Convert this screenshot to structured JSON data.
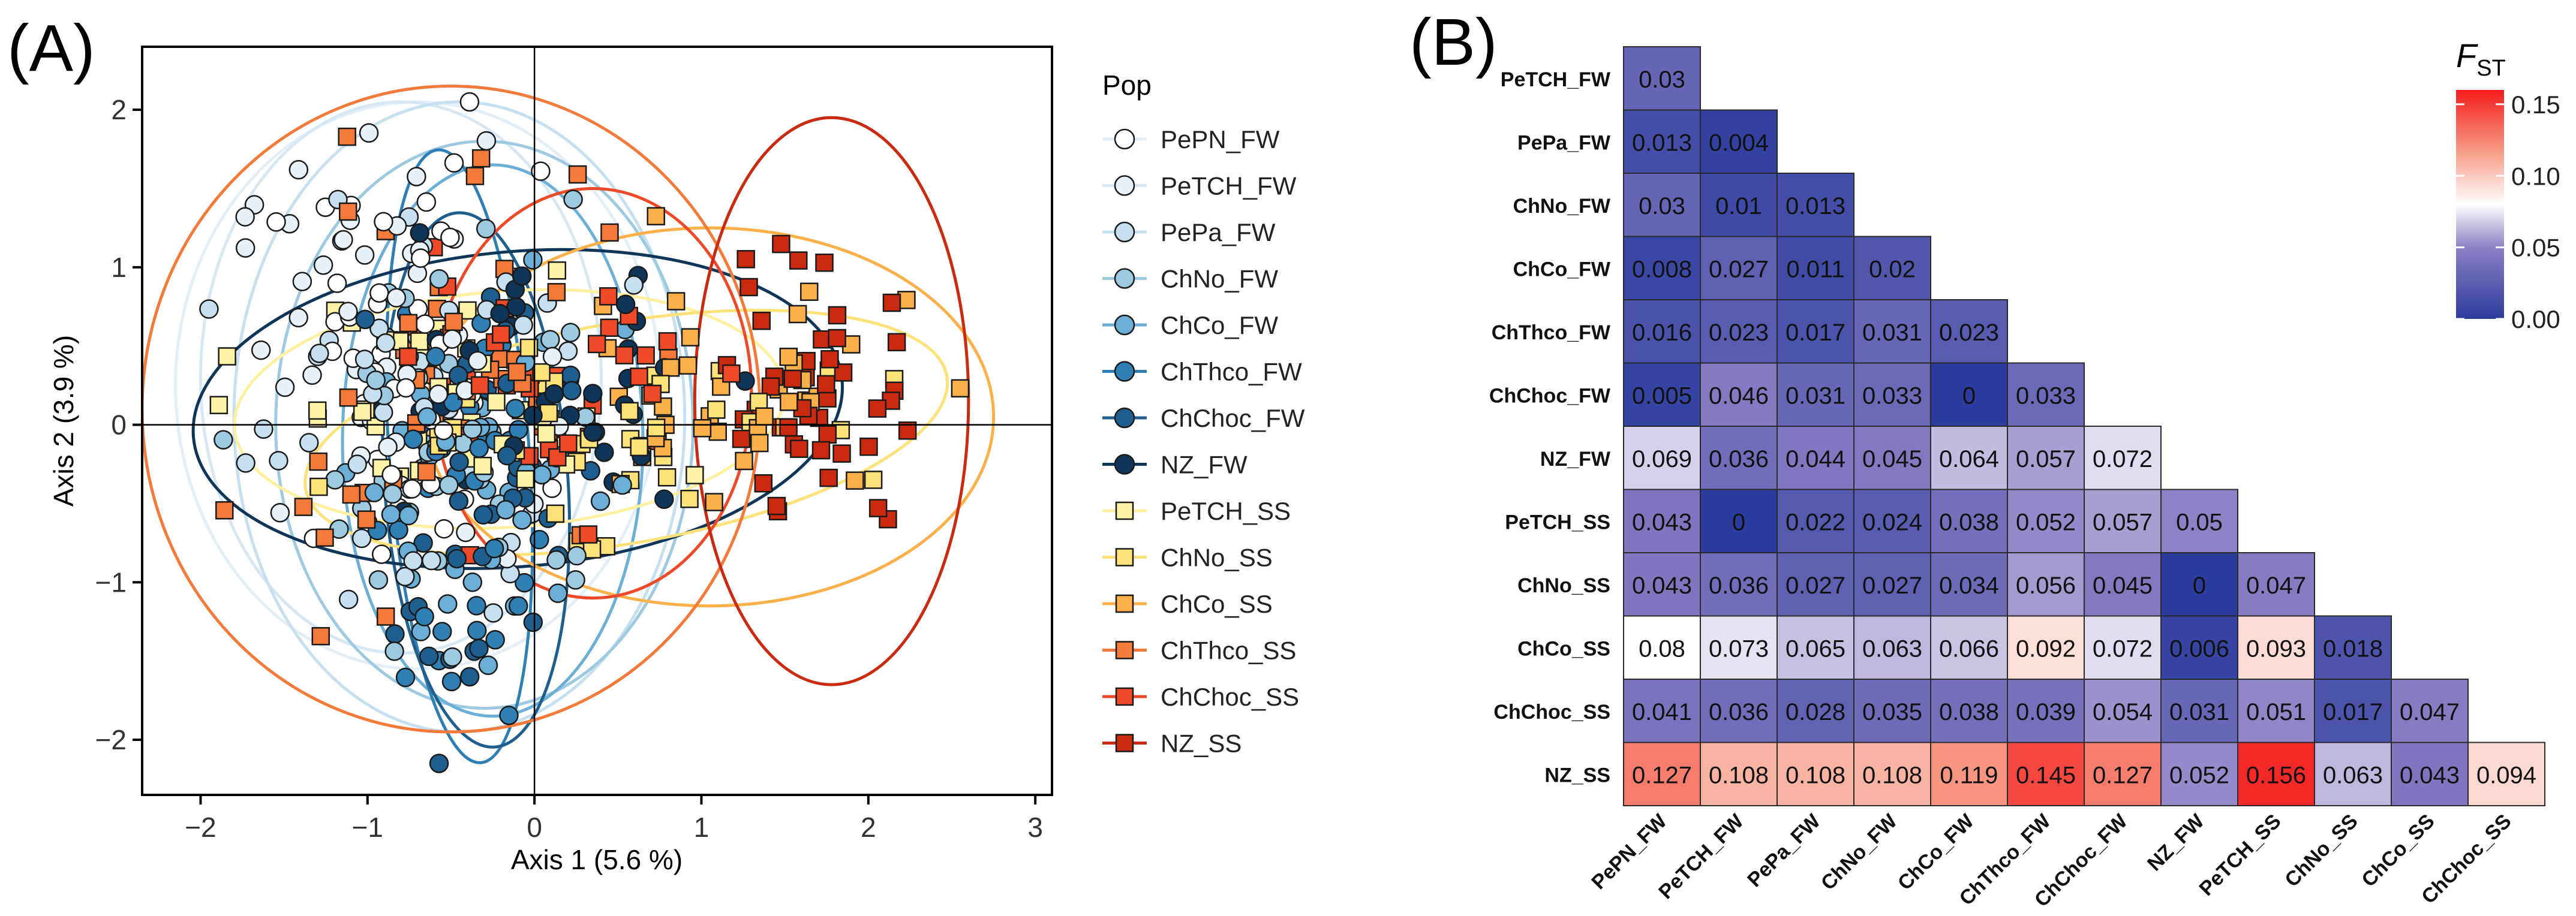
{
  "chart_data": [
    {
      "type": "scatter",
      "panel_label": "(A)",
      "xlabel": "Axis 1 (5.6 %)",
      "ylabel": "Axis 2 (3.9 %)",
      "xlim": [
        -2.35,
        3.1
      ],
      "ylim": [
        -2.35,
        2.4
      ],
      "xticks": [
        -2,
        -1,
        0,
        1,
        2,
        3
      ],
      "yticks": [
        -2,
        -1,
        0,
        1,
        2
      ],
      "xtick_labels": [
        "−2",
        "−1",
        "0",
        "1",
        "2",
        "3"
      ],
      "ytick_labels": [
        "−2",
        "−1",
        "0",
        "1",
        "2"
      ],
      "legend_title": "Pop",
      "series": [
        {
          "name": "PePN_FW",
          "shape": "circle",
          "color": "#ffffff",
          "center": [
            -0.8,
            0.3
          ],
          "spread": [
            0.55,
            0.9
          ],
          "n": 45
        },
        {
          "name": "PeTCH_FW",
          "shape": "circle",
          "color": "#e8f1f8",
          "center": [
            -0.9,
            0.5
          ],
          "spread": [
            0.6,
            0.85
          ],
          "n": 45
        },
        {
          "name": "PePa_FW",
          "shape": "circle",
          "color": "#c6e0f0",
          "center": [
            -0.7,
            0.1
          ],
          "spread": [
            0.65,
            0.9
          ],
          "n": 45
        },
        {
          "name": "ChNo_FW",
          "shape": "circle",
          "color": "#9ecae1",
          "center": [
            -0.4,
            0.0
          ],
          "spread": [
            0.6,
            0.95
          ],
          "n": 45
        },
        {
          "name": "ChCo_FW",
          "shape": "circle",
          "color": "#6baed6",
          "center": [
            -0.3,
            -0.2
          ],
          "spread": [
            0.55,
            0.9
          ],
          "n": 40
        },
        {
          "name": "ChThco_FW",
          "shape": "circle",
          "color": "#2f7fb5",
          "center": [
            -0.5,
            -0.4
          ],
          "spread": [
            0.3,
            1.0
          ],
          "n": 40
        },
        {
          "name": "ChChoc_FW",
          "shape": "circle",
          "color": "#1f5f8f",
          "center": [
            -0.3,
            -0.5
          ],
          "spread": [
            0.35,
            0.95
          ],
          "n": 40
        },
        {
          "name": "NZ_FW",
          "shape": "circle",
          "color": "#0f3558",
          "center": [
            0.0,
            0.2
          ],
          "spread": [
            0.75,
            0.5
          ],
          "n": 40
        },
        {
          "name": "PeTCH_SS",
          "shape": "square",
          "color": "#fff3a8",
          "center": [
            -0.5,
            0.1
          ],
          "spread": [
            0.75,
            0.5
          ],
          "n": 40
        },
        {
          "name": "ChNo_SS",
          "shape": "square",
          "color": "#fde27a",
          "center": [
            0.3,
            0.0
          ],
          "spread": [
            0.85,
            0.4
          ],
          "n": 40
        },
        {
          "name": "ChCo_SS",
          "shape": "square",
          "color": "#fbb04a",
          "center": [
            1.0,
            0.1
          ],
          "spread": [
            0.9,
            0.55
          ],
          "n": 40
        },
        {
          "name": "ChThco_SS",
          "shape": "square",
          "color": "#f47a3a",
          "center": [
            -0.6,
            0.3
          ],
          "spread": [
            0.75,
            0.9
          ],
          "n": 45
        },
        {
          "name": "ChChoc_SS",
          "shape": "square",
          "color": "#ee4a2a",
          "center": [
            0.1,
            0.3
          ],
          "spread": [
            0.55,
            0.5
          ],
          "n": 40
        },
        {
          "name": "NZ_SS",
          "shape": "square",
          "color": "#c92a10",
          "center": [
            1.7,
            0.2
          ],
          "spread": [
            0.4,
            0.6
          ],
          "n": 45
        }
      ],
      "ellipses": [
        {
          "pop": "PePN_FW",
          "cx": -0.7,
          "cy": 0.25,
          "rx": 1.45,
          "ry": 1.8,
          "angle": 0,
          "color": "#e4eef6"
        },
        {
          "pop": "PeTCH_FW",
          "cx": -0.8,
          "cy": 0.3,
          "rx": 1.2,
          "ry": 1.75,
          "angle": 0,
          "color": "#d7e7f3"
        },
        {
          "pop": "PePa_FW",
          "cx": -0.45,
          "cy": 0.05,
          "rx": 1.35,
          "ry": 2.0,
          "angle": 0,
          "color": "#c6e0f0"
        },
        {
          "pop": "ChNo_FW",
          "cx": -0.3,
          "cy": 0.0,
          "rx": 1.25,
          "ry": 1.8,
          "angle": 0,
          "color": "#9ecae1"
        },
        {
          "pop": "ChCo_FW",
          "cx": -0.25,
          "cy": -0.1,
          "rx": 0.9,
          "ry": 1.75,
          "angle": 0,
          "color": "#6baed6"
        },
        {
          "pop": "ChThco_FW",
          "cx": -0.45,
          "cy": -0.2,
          "rx": 0.42,
          "ry": 1.95,
          "angle": -4,
          "color": "#2f7fb5"
        },
        {
          "pop": "ChChoc_FW",
          "cx": -0.35,
          "cy": -0.35,
          "rx": 0.55,
          "ry": 1.7,
          "angle": -4,
          "color": "#1f5f8f"
        },
        {
          "pop": "NZ_FW",
          "cx": -0.1,
          "cy": 0.1,
          "rx": 1.95,
          "ry": 1.0,
          "angle": -5,
          "color": "#0f3558"
        },
        {
          "pop": "PeTCH_SS",
          "cx": -0.15,
          "cy": 0.1,
          "rx": 1.65,
          "ry": 0.75,
          "angle": -4,
          "color": "#fff0a0"
        },
        {
          "pop": "ChNo_SS",
          "cx": 0.55,
          "cy": -0.05,
          "rx": 1.95,
          "ry": 0.7,
          "angle": -10,
          "color": "#fde27a"
        },
        {
          "pop": "ChCo_SS",
          "cx": 1.05,
          "cy": 0.05,
          "rx": 1.7,
          "ry": 1.2,
          "angle": 0,
          "color": "#fbb04a"
        },
        {
          "pop": "ChThco_SS",
          "cx": -0.5,
          "cy": 0.1,
          "rx": 1.85,
          "ry": 2.05,
          "angle": 0,
          "color": "#f47a3a"
        },
        {
          "pop": "ChChoc_SS",
          "cx": 0.35,
          "cy": 0.2,
          "rx": 0.95,
          "ry": 1.3,
          "angle": 0,
          "color": "#ee4a2a"
        },
        {
          "pop": "NZ_SS",
          "cx": 1.78,
          "cy": 0.15,
          "rx": 0.82,
          "ry": 1.8,
          "angle": 0,
          "color": "#c92a10"
        }
      ]
    },
    {
      "type": "heatmap",
      "panel_label": "(B)",
      "legend_title_main": "F",
      "legend_title_sub": "ST",
      "legend_ticks": [
        0.15,
        0.1,
        0.05,
        0.0
      ],
      "legend_tick_labels": [
        "0.15",
        "0.10",
        "0.05",
        "0.00"
      ],
      "vmin": 0.0,
      "vmax": 0.16,
      "row_labels": [
        "PeTCH_FW",
        "PePa_FW",
        "ChNo_FW",
        "ChCo_FW",
        "ChThco_FW",
        "ChChoc_FW",
        "NZ_FW",
        "PeTCH_SS",
        "ChNo_SS",
        "ChCo_SS",
        "ChChoc_SS",
        "NZ_SS"
      ],
      "col_labels": [
        "PePN_FW",
        "PeTCH_FW",
        "PePa_FW",
        "ChNo_FW",
        "ChCo_FW",
        "ChThco_FW",
        "ChChoc_FW",
        "NZ_FW",
        "PeTCH_SS",
        "ChNo_SS",
        "ChCo_SS",
        "ChChoc_SS"
      ],
      "rows": [
        [
          {
            "v": 0.03,
            "t": "0.03"
          }
        ],
        [
          {
            "v": 0.013,
            "t": "0.013"
          },
          {
            "v": 0.004,
            "t": "0.004"
          }
        ],
        [
          {
            "v": 0.03,
            "t": "0.03"
          },
          {
            "v": 0.01,
            "t": "0.01"
          },
          {
            "v": 0.013,
            "t": "0.013"
          }
        ],
        [
          {
            "v": 0.008,
            "t": "0.008"
          },
          {
            "v": 0.027,
            "t": "0.027"
          },
          {
            "v": 0.011,
            "t": "0.011"
          },
          {
            "v": 0.02,
            "t": "0.02"
          }
        ],
        [
          {
            "v": 0.016,
            "t": "0.016"
          },
          {
            "v": 0.023,
            "t": "0.023"
          },
          {
            "v": 0.017,
            "t": "0.017"
          },
          {
            "v": 0.031,
            "t": "0.031"
          },
          {
            "v": 0.023,
            "t": "0.023"
          }
        ],
        [
          {
            "v": 0.005,
            "t": "0.005"
          },
          {
            "v": 0.046,
            "t": "0.046"
          },
          {
            "v": 0.031,
            "t": "0.031"
          },
          {
            "v": 0.033,
            "t": "0.033"
          },
          {
            "v": 0.0,
            "t": "0"
          },
          {
            "v": 0.033,
            "t": "0.033"
          }
        ],
        [
          {
            "v": 0.069,
            "t": "0.069"
          },
          {
            "v": 0.036,
            "t": "0.036"
          },
          {
            "v": 0.044,
            "t": "0.044"
          },
          {
            "v": 0.045,
            "t": "0.045"
          },
          {
            "v": 0.064,
            "t": "0.064"
          },
          {
            "v": 0.057,
            "t": "0.057"
          },
          {
            "v": 0.072,
            "t": "0.072"
          }
        ],
        [
          {
            "v": 0.043,
            "t": "0.043"
          },
          {
            "v": 0.0,
            "t": "0"
          },
          {
            "v": 0.022,
            "t": "0.022"
          },
          {
            "v": 0.024,
            "t": "0.024"
          },
          {
            "v": 0.038,
            "t": "0.038"
          },
          {
            "v": 0.052,
            "t": "0.052"
          },
          {
            "v": 0.057,
            "t": "0.057"
          },
          {
            "v": 0.05,
            "t": "0.05"
          }
        ],
        [
          {
            "v": 0.043,
            "t": "0.043"
          },
          {
            "v": 0.036,
            "t": "0.036"
          },
          {
            "v": 0.027,
            "t": "0.027"
          },
          {
            "v": 0.027,
            "t": "0.027"
          },
          {
            "v": 0.034,
            "t": "0.034"
          },
          {
            "v": 0.056,
            "t": "0.056"
          },
          {
            "v": 0.045,
            "t": "0.045"
          },
          {
            "v": 0.0,
            "t": "0"
          },
          {
            "v": 0.047,
            "t": "0.047"
          }
        ],
        [
          {
            "v": 0.08,
            "t": "0.08"
          },
          {
            "v": 0.073,
            "t": "0.073"
          },
          {
            "v": 0.065,
            "t": "0.065"
          },
          {
            "v": 0.063,
            "t": "0.063"
          },
          {
            "v": 0.066,
            "t": "0.066"
          },
          {
            "v": 0.092,
            "t": "0.092"
          },
          {
            "v": 0.072,
            "t": "0.072"
          },
          {
            "v": 0.006,
            "t": "0.006"
          },
          {
            "v": 0.093,
            "t": "0.093"
          },
          {
            "v": 0.018,
            "t": "0.018"
          }
        ],
        [
          {
            "v": 0.041,
            "t": "0.041"
          },
          {
            "v": 0.036,
            "t": "0.036"
          },
          {
            "v": 0.028,
            "t": "0.028"
          },
          {
            "v": 0.035,
            "t": "0.035"
          },
          {
            "v": 0.038,
            "t": "0.038"
          },
          {
            "v": 0.039,
            "t": "0.039"
          },
          {
            "v": 0.054,
            "t": "0.054"
          },
          {
            "v": 0.031,
            "t": "0.031"
          },
          {
            "v": 0.051,
            "t": "0.051"
          },
          {
            "v": 0.017,
            "t": "0.017"
          },
          {
            "v": 0.047,
            "t": "0.047"
          }
        ],
        [
          {
            "v": 0.127,
            "t": "0.127"
          },
          {
            "v": 0.108,
            "t": "0.108"
          },
          {
            "v": 0.108,
            "t": "0.108"
          },
          {
            "v": 0.108,
            "t": "0.108"
          },
          {
            "v": 0.119,
            "t": "0.119"
          },
          {
            "v": 0.145,
            "t": "0.145"
          },
          {
            "v": 0.127,
            "t": "0.127"
          },
          {
            "v": 0.052,
            "t": "0.052"
          },
          {
            "v": 0.156,
            "t": "0.156"
          },
          {
            "v": 0.063,
            "t": "0.063"
          },
          {
            "v": 0.043,
            "t": "0.043"
          },
          {
            "v": 0.094,
            "t": "0.094"
          }
        ]
      ]
    }
  ]
}
